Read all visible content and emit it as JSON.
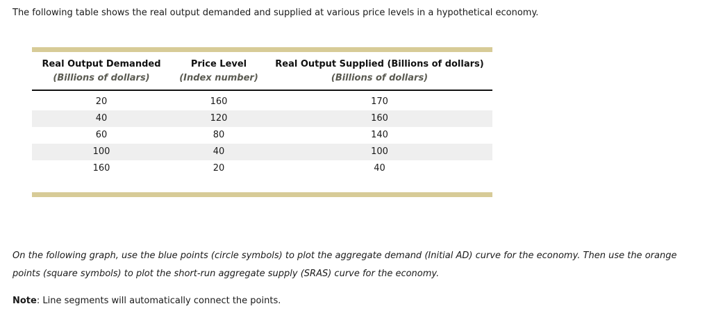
{
  "page": {
    "intro": "The following table shows the real output demanded and supplied at various price levels in a hypothetical economy.",
    "instructions": "On the following graph, use the blue points (circle symbols) to plot the aggregate demand (Initial AD) curve for the economy. Then use the orange points (square symbols) to plot the short-run aggregate supply (SRAS) curve for the economy.",
    "note_label": "Note",
    "note_text": ": Line segments will automatically connect the points."
  },
  "table": {
    "columns": [
      {
        "title": "Real Output Demanded",
        "subtitle": "(Billions of dollars)"
      },
      {
        "title": "Price Level",
        "subtitle": "(Index number)"
      },
      {
        "title": "Real Output Supplied (Billions of dollars)",
        "subtitle": "(Billions of dollars)"
      }
    ],
    "rows": [
      [
        "20",
        "160",
        "170"
      ],
      [
        "40",
        "120",
        "160"
      ],
      [
        "60",
        "80",
        "140"
      ],
      [
        "100",
        "40",
        "100"
      ],
      [
        "160",
        "20",
        "40"
      ]
    ]
  },
  "colors": {
    "table_accent_bar": "#d7cb97",
    "row_stripe": "#efefef",
    "subtitle_text": "#5b5b52",
    "body_text": "#1a1a1a",
    "background": "#ffffff"
  }
}
